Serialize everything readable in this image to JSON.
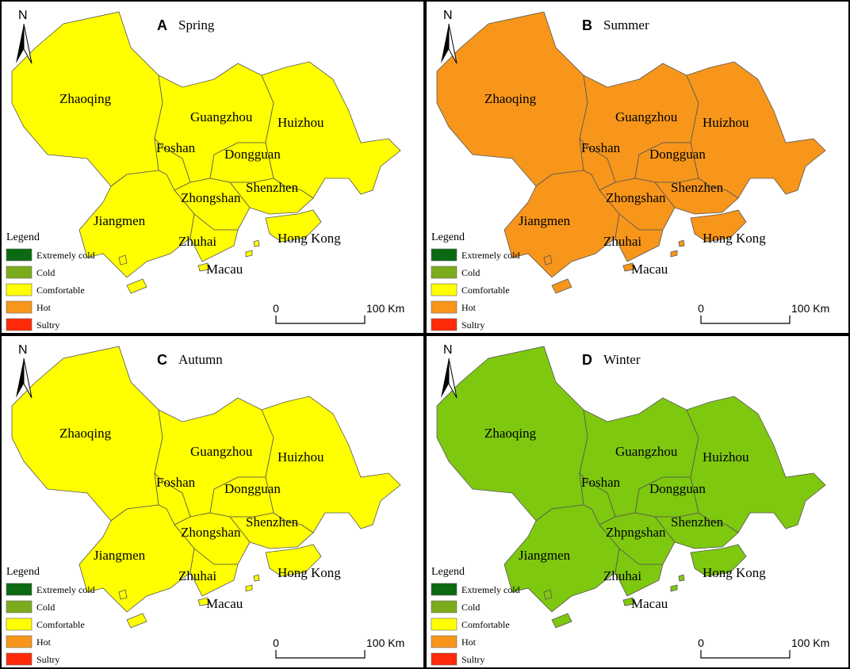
{
  "north": "N",
  "legend": {
    "title": "Legend",
    "items": [
      {
        "label": "Extremely cold",
        "color": "#0b6a12"
      },
      {
        "label": "Cold",
        "color": "#7cab1c"
      },
      {
        "label": "Comfortable",
        "color": "#ffff00"
      },
      {
        "label": "Hot",
        "color": "#f7961b"
      },
      {
        "label": "Sultry",
        "color": "#ff2a0a"
      }
    ]
  },
  "scale_labels": [
    "0",
    "100 Km"
  ],
  "panels": [
    {
      "letter": "A",
      "title": "Spring",
      "fill": "#ffff00",
      "cities": [
        "Zhaoqing",
        "Guangzhou",
        "Huizhou",
        "Foshan",
        "Dongguan",
        "Shenzhen",
        "Zhongshan",
        "Jiangmen",
        "Zhuhai",
        "Hong Kong",
        "Macau"
      ]
    },
    {
      "letter": "B",
      "title": "Summer",
      "fill": "#f7961b",
      "cities": [
        "Zhaoqing",
        "Guangzhou",
        "Huizhou",
        "Foshan",
        "Dongguan",
        "Shenzhen",
        "Zhongshan",
        "Jiangmen",
        "Zhuhai",
        "Hong Kong",
        "Macau"
      ]
    },
    {
      "letter": "C",
      "title": "Autumn",
      "fill": "#ffff00",
      "cities": [
        "Zhaoqing",
        "Guangzhou",
        "Huizhou",
        "Foshan",
        "Dongguan",
        "Shenzhen",
        "Zhongshan",
        "Jiangmen",
        "Zhuhai",
        "Hong Kong",
        "Macau"
      ]
    },
    {
      "letter": "D",
      "title": "Winter",
      "fill": "#7ec80f",
      "cities": [
        "Zhaoqing",
        "Guangzhou",
        "Huizhou",
        "Foshan",
        "Dongguan",
        "Shenzhen",
        "Zhpngshan",
        "Jiangmen",
        "Zhuhai",
        "Hong Kong",
        "Macau"
      ]
    }
  ]
}
